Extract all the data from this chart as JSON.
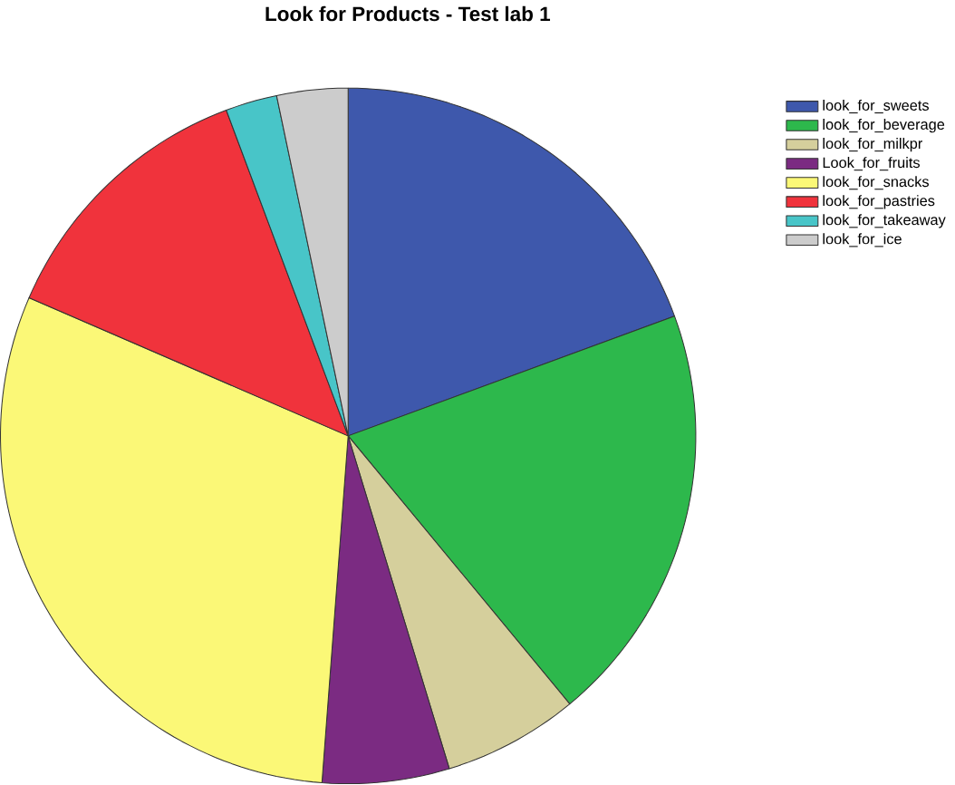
{
  "chart_data": {
    "type": "pie",
    "title": "Look for Products - Test lab 1",
    "categories": [
      "look_for_sweets",
      "look_for_beverage",
      "look_for_milkpr",
      "Look_for_fruits",
      "look_for_snacks",
      "look_for_pastries",
      "look_for_takeaway",
      "look_for_ice"
    ],
    "values": [
      19.4,
      19.6,
      6.3,
      5.9,
      30.3,
      12.8,
      2.4,
      3.3
    ],
    "colors": [
      "#3e58ac",
      "#2db84c",
      "#d5cf9c",
      "#7b2b82",
      "#fbf877",
      "#f0333c",
      "#48c5c8",
      "#cccccc"
    ],
    "legend": "top right"
  }
}
